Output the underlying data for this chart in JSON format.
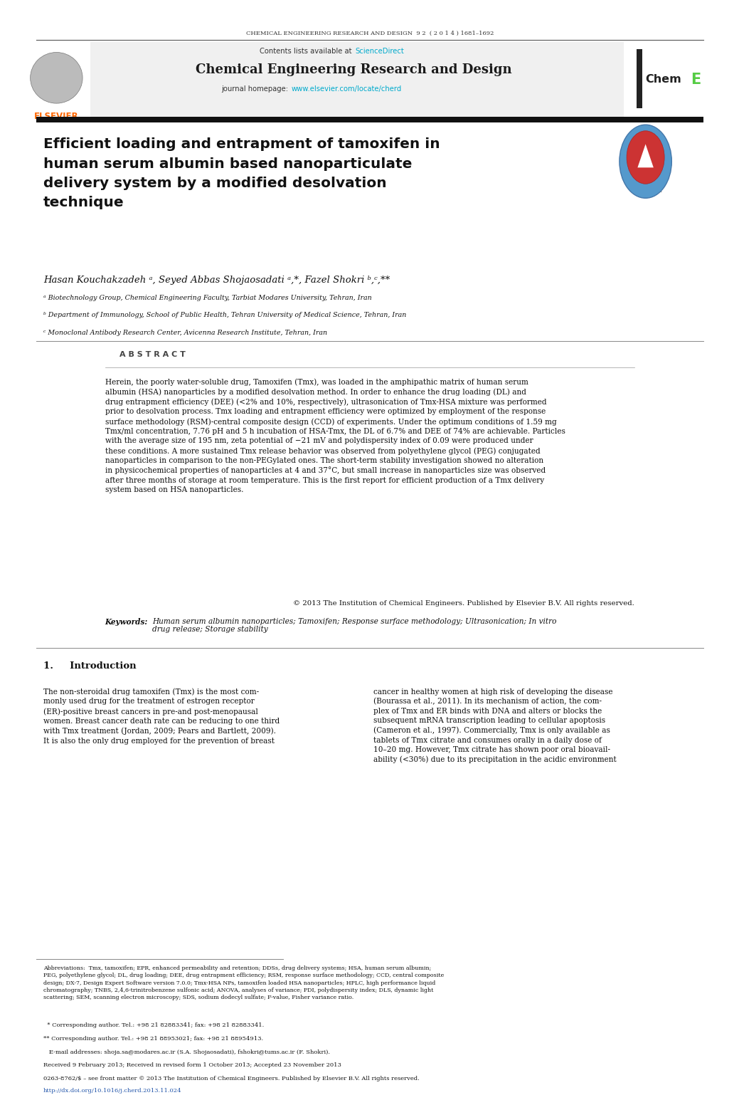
{
  "page_width": 10.2,
  "page_height": 14.32,
  "bg_color": "#ffffff",
  "header_journal": "CHEMICAL ENGINEERING RESEARCH AND DESIGN  9 2  ( 2 0 1 4 ) 1681–1692",
  "contents_text": "Contents lists available at ",
  "sciencedirect_text": "ScienceDirect",
  "sciencedirect_color": "#00aacc",
  "journal_title": "Chemical Engineering Research and Design",
  "journal_homepage_prefix": "journal homepage: ",
  "journal_url": "www.elsevier.com/locate/cherd",
  "journal_url_color": "#00aacc",
  "elsevier_color": "#ff6600",
  "article_title": "Efficient loading and entrapment of tamoxifen in\nhuman serum albumin based nanoparticulate\ndelivery system by a modified desolvation\ntechnique",
  "affil_a": "ᵃ Biotechnology Group, Chemical Engineering Faculty, Tarbiat Modares University, Tehran, Iran",
  "affil_b": "ᵇ Department of Immunology, School of Public Health, Tehran University of Medical Science, Tehran, Iran",
  "affil_c": "ᶜ Monoclonal Antibody Research Center, Avicenna Research Institute, Tehran, Iran",
  "abstract_title": "A B S T R A C T",
  "abstract_text": "Herein, the poorly water-soluble drug, Tamoxifen (Tmx), was loaded in the amphipathic matrix of human serum\nalbumin (HSA) nanoparticles by a modified desolvation method. In order to enhance the drug loading (DL) and\ndrug entrapment efficiency (DEE) (<2% and 10%, respectively), ultrasonication of Tmx-HSA mixture was performed\nprior to desolvation process. Tmx loading and entrapment efficiency were optimized by employment of the response\nsurface methodology (RSM)-central composite design (CCD) of experiments. Under the optimum conditions of 1.59 mg\nTmx/ml concentration, 7.76 pH and 5 h incubation of HSA-Tmx, the DL of 6.7% and DEE of 74% are achievable. Particles\nwith the average size of 195 nm, zeta potential of −21 mV and polydispersity index of 0.09 were produced under\nthese conditions. A more sustained Tmx release behavior was observed from polyethylene glycol (PEG) conjugated\nnanoparticles in comparison to the non-PEGylated ones. The short-term stability investigation showed no alteration\nin physicochemical properties of nanoparticles at 4 and 37°C, but small increase in nanoparticles size was observed\nafter three months of storage at room temperature. This is the first report for efficient production of a Tmx delivery\nsystem based on HSA nanoparticles.",
  "copyright_text": "© 2013 The Institution of Chemical Engineers. Published by Elsevier B.V. All rights reserved.",
  "keywords_label": "Keywords:  ",
  "keywords_text": "Human serum albumin nanoparticles; Tamoxifen; Response surface methodology; Ultrasonication; In vitro\ndrug release; Storage stability",
  "intro_heading": "1.     Introduction",
  "intro_col1": "The non-steroidal drug tamoxifen (Tmx) is the most com-\nmonly used drug for the treatment of estrogen receptor\n(ER)-positive breast cancers in pre-and post-menopausal\nwomen. Breast cancer death rate can be reducing to one third\nwith Tmx treatment (Jordan, 2009; Pears and Bartlett, 2009).\nIt is also the only drug employed for the prevention of breast",
  "intro_col2": "cancer in healthy women at high risk of developing the disease\n(Bourassa et al., 2011). In its mechanism of action, the com-\nplex of Tmx and ER binds with DNA and alters or blocks the\nsubsequent mRNA transcription leading to cellular apoptosis\n(Cameron et al., 1997). Commercially, Tmx is only available as\ntablets of Tmx citrate and consumes orally in a daily dose of\n10–20 mg. However, Tmx citrate has shown poor oral bioavail-\nability (<30%) due to its precipitation in the acidic environment",
  "footnote_abbrev": "Abbreviations:  Tmx, tamoxifen; EPR, enhanced permeability and retention; DDSs, drug delivery systems; HSA, human serum albumin;\nPEG, polyethylene glycol; DL, drug loading; DEE, drug entrapment efficiency; RSM, response surface methodology; CCD, central composite\ndesign; DX-7, Design Expert Software version 7.0.0; Tmx-HSA NPs, tamoxifen loaded HSA nanoparticles; HPLC, high performance liquid\nchromatography; TNBS, 2,4,6-trinitrobenzene sulfonic acid; ANOVA, analyses of variance; PDI, polydispersity index; DLS, dynamic light\nscattering; SEM, scanning electron microscopy; SDS, sodium dodecyl sulfate; F-value, Fisher variance ratio.",
  "footnote_star": "  * Corresponding author. Tel.: +98 21 82883341; fax: +98 21 82883341.",
  "footnote_starstar": "** Corresponding author. Tel.: +98 21 88953021; fax: +98 21 88954913.",
  "footnote_email": "   E-mail addresses: shoja.sa@modares.ac.ir (S.A. Shojaosadati), fshokri@tums.ac.ir (F. Shokri).",
  "footnote_received": "Received 9 February 2013; Received in revised form 1 October 2013; Accepted 23 November 2013",
  "footnote_issn": "0263-8762/$ – see front matter © 2013 The Institution of Chemical Engineers. Published by Elsevier B.V. All rights reserved.",
  "footnote_doi": "http://dx.doi.org/10.1016/j.cherd.2013.11.024"
}
